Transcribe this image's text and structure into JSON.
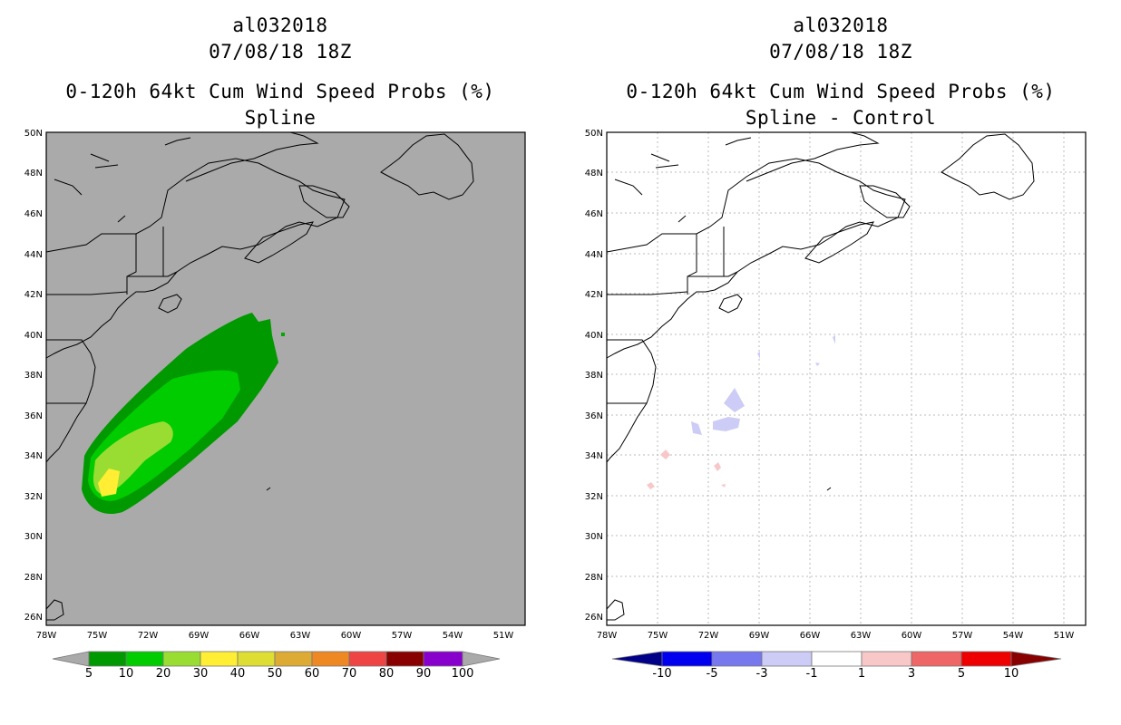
{
  "colors": {
    "land_bg_left": "#aaaaaa",
    "frame": "#000000",
    "prob_5": "#009900",
    "prob_10": "#00cc00",
    "prob_20": "#99dd33",
    "prob_30": "#ffee33",
    "prob_40": "#dddd33",
    "prob_50": "#ddaa33",
    "prob_60": "#ee8822",
    "prob_70": "#ee4444",
    "prob_80": "#880000",
    "prob_90": "#8800cc",
    "diff_neg10": "#000088",
    "diff_neg5": "#0000ee",
    "diff_neg3": "#7777ee",
    "diff_neg1": "#ccccf6",
    "diff_pos1": "#f8c8c8",
    "diff_pos3": "#ee6666",
    "diff_pos5": "#ee0000",
    "diff_pos10": "#880000"
  },
  "left": {
    "storm_id": "al032018",
    "datetime": "07/08/18 18Z",
    "product": "0-120h 64kt Cum Wind Speed Probs (%)",
    "subtitle": "Spline",
    "colorbar_labels": [
      "5",
      "10",
      "20",
      "30",
      "40",
      "50",
      "60",
      "70",
      "80",
      "90",
      "100"
    ]
  },
  "right": {
    "storm_id": "al032018",
    "datetime": "07/08/18 18Z",
    "product": "0-120h 64kt Cum Wind Speed Probs (%)",
    "subtitle": "Spline - Control",
    "colorbar_labels": [
      "-10",
      "-5",
      "-3",
      "-1",
      "1",
      "3",
      "5",
      "10"
    ]
  },
  "axes": {
    "lat_labels": [
      "50N",
      "48N",
      "46N",
      "44N",
      "42N",
      "40N",
      "38N",
      "36N",
      "34N",
      "32N",
      "30N",
      "28N",
      "26N"
    ],
    "lon_labels": [
      "78W",
      "75W",
      "72W",
      "69W",
      "66W",
      "63W",
      "60W",
      "57W",
      "54W",
      "51W"
    ]
  }
}
